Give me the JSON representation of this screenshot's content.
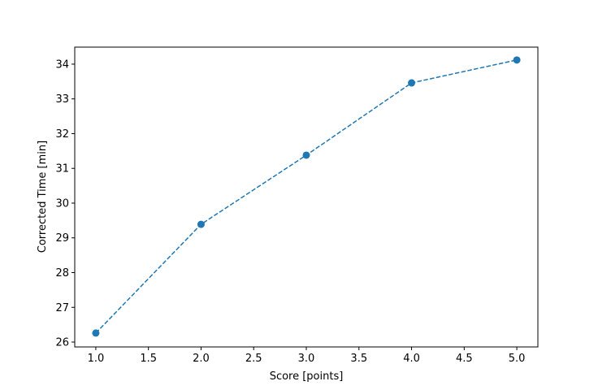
{
  "chart_data": {
    "type": "line",
    "title": "",
    "xlabel": "Score [points]",
    "ylabel": "Corrected Time [min]",
    "x": [
      1,
      2,
      3,
      4,
      5
    ],
    "series": [
      {
        "values": [
          26.26,
          29.39,
          31.38,
          33.46,
          34.12
        ],
        "color": "#1f77b4",
        "linestyle": "dashed",
        "marker": "circle"
      }
    ],
    "xlim": [
      0.8,
      5.2
    ],
    "ylim": [
      25.86,
      34.49
    ],
    "xticks": [
      "1.0",
      "1.5",
      "2.0",
      "2.5",
      "3.0",
      "3.5",
      "4.0",
      "4.5",
      "5.0"
    ],
    "yticks": [
      "26",
      "27",
      "28",
      "29",
      "30",
      "31",
      "32",
      "33",
      "34"
    ],
    "grid": false,
    "legend": "none"
  }
}
